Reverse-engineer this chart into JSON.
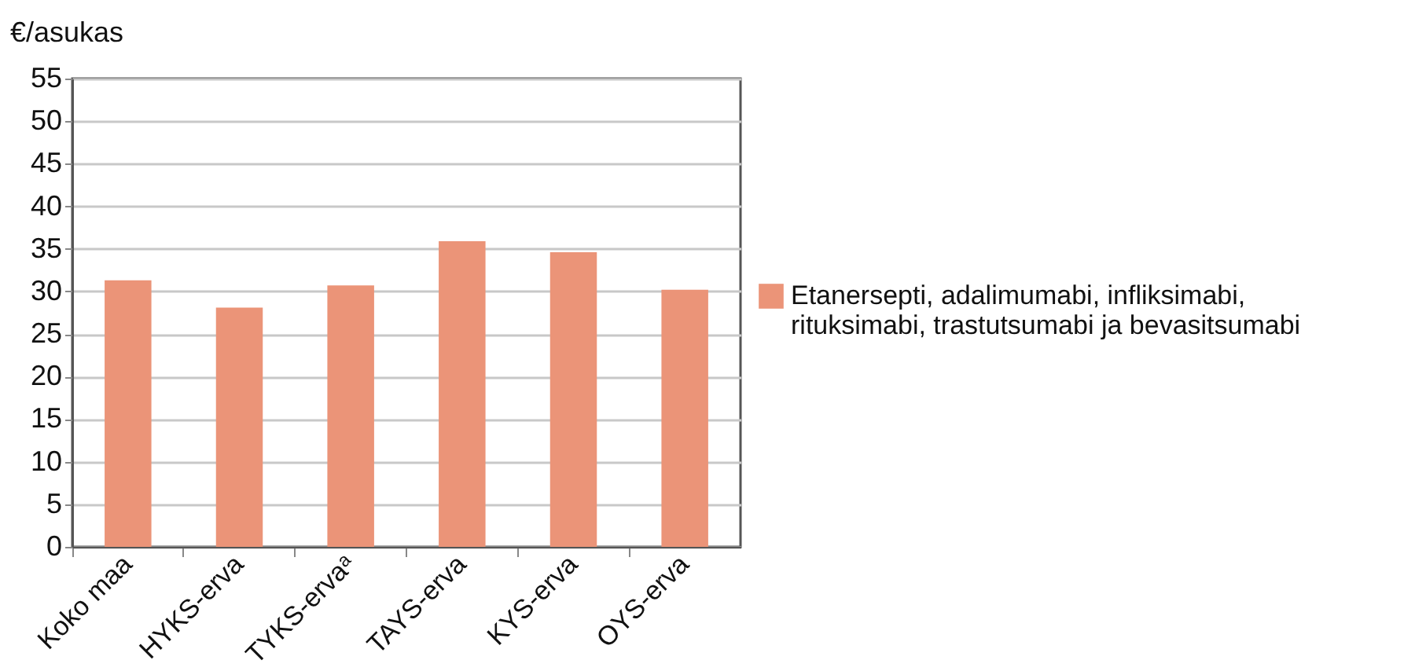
{
  "chart_data": {
    "type": "bar",
    "ylabel": "€/asukas",
    "categories": [
      "Koko maa",
      "HYKS-erva",
      "TYKS-ervaᵃ",
      "TAYS-erva",
      "KYS-erva",
      "OYS-erva"
    ],
    "series": [
      {
        "name": "Etanersepti, adalimumabi, infliksimabi, rituksimabi, trastutsumabi ja bevasitsumabi",
        "color": "#eb9478",
        "values": [
          31.3,
          28.1,
          30.7,
          35.9,
          34.6,
          30.2
        ]
      }
    ],
    "ylim": [
      0,
      55
    ],
    "yticks": [
      0,
      5,
      10,
      15,
      20,
      25,
      30,
      35,
      40,
      45,
      50,
      55
    ],
    "grid": "y",
    "legend": "right"
  }
}
